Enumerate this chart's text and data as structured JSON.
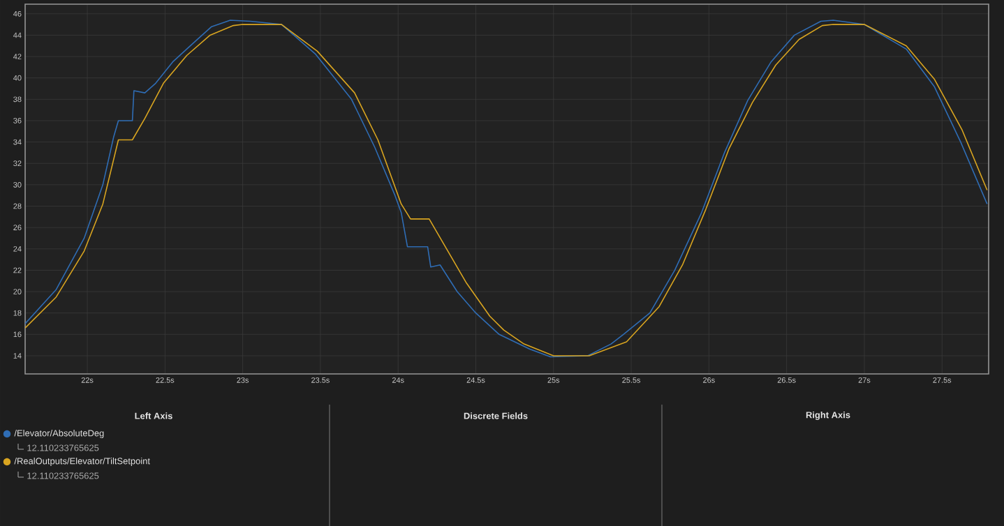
{
  "chart_data": {
    "type": "line",
    "xlim": [
      21.6,
      27.8
    ],
    "ylim": [
      12.3,
      46.9
    ],
    "xticks": [
      {
        "value": 22,
        "label": "22s"
      },
      {
        "value": 22.5,
        "label": "22.5s"
      },
      {
        "value": 23,
        "label": "23s"
      },
      {
        "value": 23.5,
        "label": "23.5s"
      },
      {
        "value": 24,
        "label": "24s"
      },
      {
        "value": 24.5,
        "label": "24.5s"
      },
      {
        "value": 25,
        "label": "25s"
      },
      {
        "value": 25.5,
        "label": "25.5s"
      },
      {
        "value": 26,
        "label": "26s"
      },
      {
        "value": 26.5,
        "label": "26.5s"
      },
      {
        "value": 27,
        "label": "27s"
      },
      {
        "value": 27.5,
        "label": "27.5s"
      }
    ],
    "yticks": [
      14,
      16,
      18,
      20,
      22,
      24,
      26,
      28,
      30,
      32,
      34,
      36,
      38,
      40,
      42,
      44,
      46
    ],
    "grid": true,
    "legend": "bottom",
    "series": [
      {
        "name": "/Elevator/AbsoluteDeg",
        "color": "#2f6db5",
        "x": [
          21.6,
          21.8,
          21.98,
          22.1,
          22.17,
          22.2,
          22.29,
          22.3,
          22.37,
          22.44,
          22.55,
          22.7,
          22.8,
          22.92,
          23.05,
          23.25,
          23.47,
          23.7,
          23.85,
          23.98,
          24.02,
          24.06,
          24.19,
          24.21,
          24.27,
          24.38,
          24.5,
          24.65,
          24.85,
          24.98,
          25.22,
          25.37,
          25.45,
          25.62,
          25.78,
          25.95,
          26.1,
          26.25,
          26.4,
          26.55,
          26.72,
          26.8,
          27.0,
          27.27,
          27.45,
          27.62,
          27.79
        ],
        "values": [
          17.0,
          20.2,
          25.0,
          30.0,
          34.5,
          36.0,
          36.0,
          38.8,
          38.6,
          39.5,
          41.5,
          43.5,
          44.8,
          45.4,
          45.3,
          45.0,
          42.2,
          38.0,
          33.5,
          29.0,
          27.4,
          24.2,
          24.2,
          22.3,
          22.5,
          20.0,
          18.0,
          16.0,
          14.6,
          13.9,
          14.0,
          15.1,
          16.0,
          18.0,
          22.0,
          27.3,
          33.0,
          37.9,
          41.5,
          44.0,
          45.3,
          45.4,
          45.0,
          42.7,
          39.2,
          34.0,
          28.2
        ]
      },
      {
        "name": "/RealOutputs/Elevator/TiltSetpoint",
        "color": "#d9a520",
        "x": [
          21.6,
          21.8,
          21.98,
          22.1,
          22.2,
          22.29,
          22.37,
          22.49,
          22.64,
          22.79,
          22.94,
          23.0,
          23.25,
          23.48,
          23.72,
          23.87,
          24.02,
          24.08,
          24.2,
          24.32,
          24.44,
          24.59,
          24.68,
          24.81,
          25.0,
          25.23,
          25.47,
          25.68,
          25.83,
          25.98,
          26.13,
          26.28,
          26.43,
          26.58,
          26.73,
          26.8,
          27.0,
          27.27,
          27.45,
          27.63,
          27.79
        ],
        "values": [
          16.6,
          19.5,
          23.8,
          28.2,
          34.2,
          34.2,
          36.2,
          39.5,
          42.1,
          44.0,
          44.9,
          45.0,
          45.0,
          42.5,
          38.6,
          34.2,
          28.2,
          26.8,
          26.8,
          23.8,
          20.8,
          17.7,
          16.4,
          15.1,
          14.0,
          14.0,
          15.3,
          18.6,
          22.5,
          27.7,
          33.4,
          37.7,
          41.2,
          43.6,
          44.9,
          45.0,
          45.0,
          43.0,
          39.9,
          35.1,
          29.5
        ]
      }
    ],
    "annotations": [
      "Left Axis",
      "Discrete Fields",
      "Right Axis",
      "12.110233765625",
      "12.110233765625"
    ]
  }
}
